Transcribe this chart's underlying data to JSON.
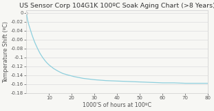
{
  "title": "US Sensor Corp 104G1K 100ºC Soak Aging Chart (>8 Years)",
  "xlabel": "1000'S of hours at 100ºC",
  "ylabel": "Temperature Shift (ºC)",
  "xlim": [
    0,
    80
  ],
  "ylim": [
    -0.18,
    0.005
  ],
  "xticks": [
    10,
    20,
    30,
    40,
    50,
    60,
    70,
    80
  ],
  "yticks": [
    0,
    -0.02,
    -0.04,
    -0.06,
    -0.08,
    -0.1,
    -0.12,
    -0.14,
    -0.16,
    -0.18
  ],
  "ytick_labels": [
    "0",
    "-0.02",
    "-0.04",
    "-0.06",
    "-0.08",
    "-0.1",
    "-0.12",
    "-0.14",
    "-0.16",
    "-0.18"
  ],
  "line_color": "#8dcfdd",
  "background_color": "#f7f7f4",
  "plot_bg_color": "#f7f7f4",
  "title_fontsize": 6.8,
  "label_fontsize": 5.8,
  "tick_fontsize": 5.0,
  "grid_color": "#e0e0e0",
  "spine_color": "#cccccc",
  "text_color": "#555555",
  "marker_color": "#bbbbbb",
  "curve_x": [
    0,
    0.5,
    1,
    1.5,
    2,
    2.5,
    3,
    3.5,
    4,
    5,
    6,
    7,
    8,
    9,
    10,
    12,
    14,
    16,
    18,
    21,
    25,
    30,
    35,
    40,
    45,
    50,
    55,
    60,
    65,
    70,
    75,
    80
  ],
  "curve_y": [
    0,
    -0.016,
    -0.026,
    -0.034,
    -0.042,
    -0.05,
    -0.057,
    -0.064,
    -0.07,
    -0.081,
    -0.091,
    -0.099,
    -0.106,
    -0.112,
    -0.117,
    -0.125,
    -0.131,
    -0.136,
    -0.139,
    -0.143,
    -0.147,
    -0.15,
    -0.152,
    -0.153,
    -0.154,
    -0.155,
    -0.156,
    -0.157,
    -0.157,
    -0.158,
    -0.158,
    -0.158
  ]
}
